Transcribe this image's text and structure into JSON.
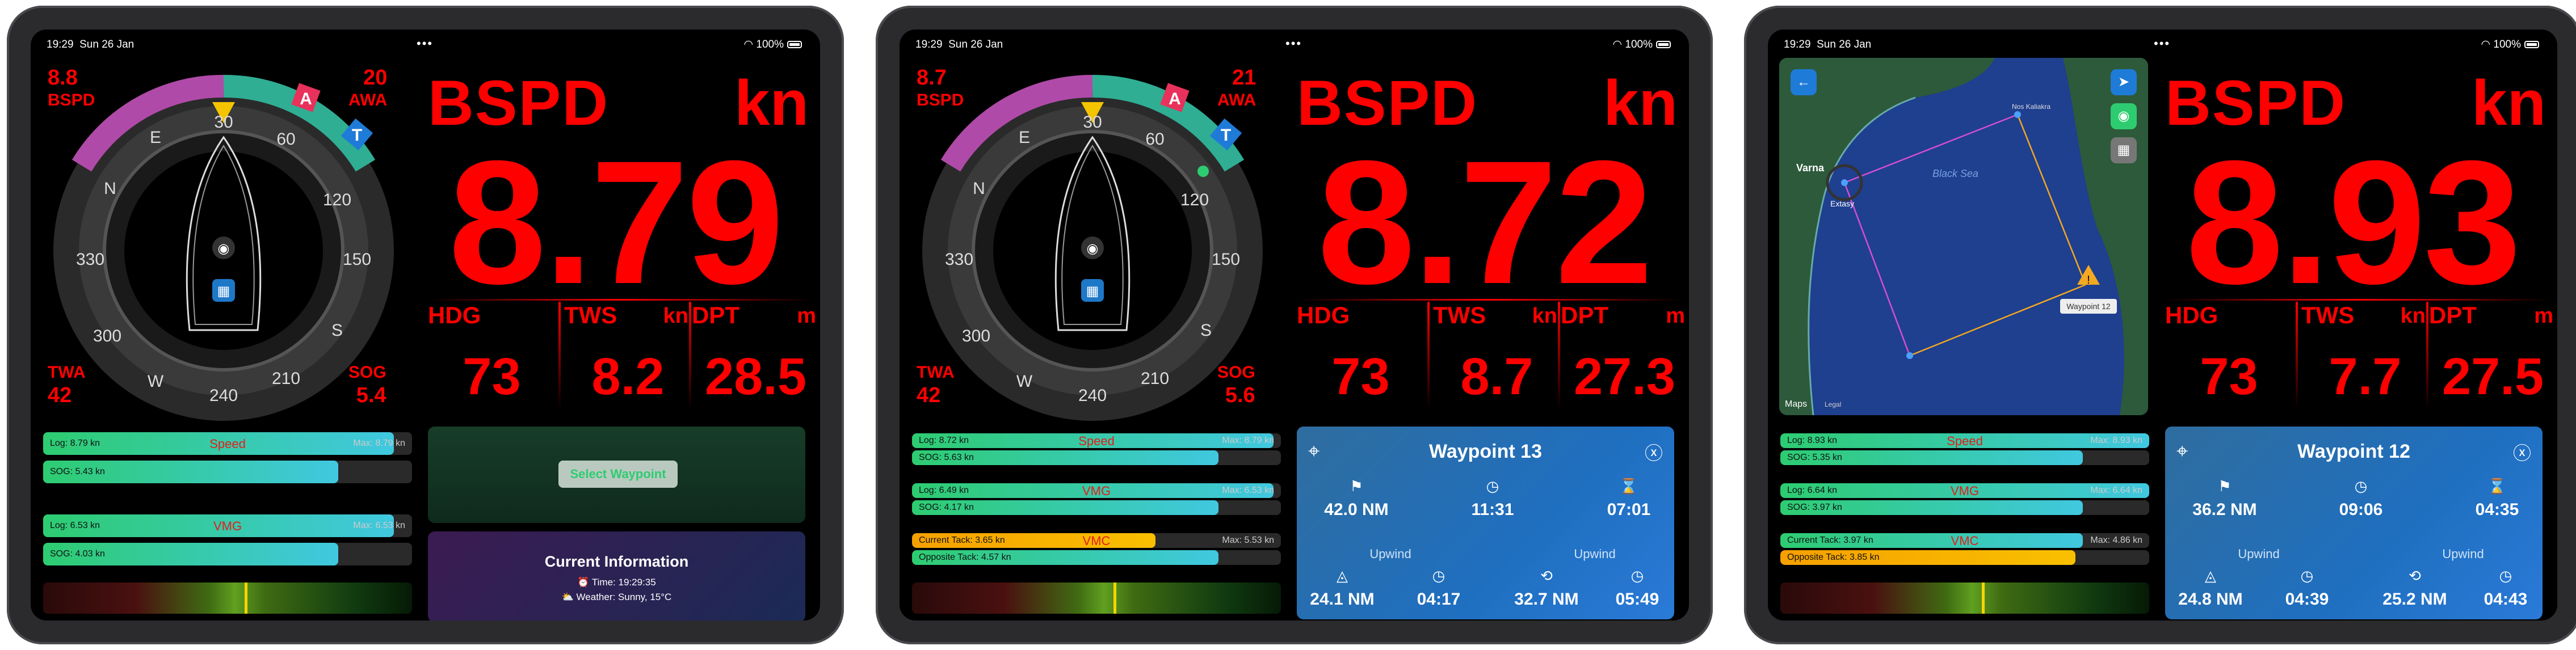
{
  "status": {
    "time": "19:29",
    "date": "Sun 26 Jan",
    "dots": "•••",
    "battery": "100%"
  },
  "colors": {
    "accent": "#ff0000",
    "bar_fill": "#2ecc71",
    "panel_blue": "#1f6fc0"
  },
  "compass": {
    "ticks": [
      "30",
      "60",
      "E",
      "120",
      "150",
      "S",
      "210",
      "240",
      "W",
      "300",
      "330",
      "N"
    ],
    "flags": [
      "A",
      "T"
    ]
  },
  "screens": [
    {
      "bspd": "8.8",
      "awa": "20",
      "twa": "42",
      "sog": "5.4",
      "corner_labels": {
        "bspd": "BSPD",
        "awa": "AWA",
        "twa": "TWA",
        "sog": "SOG"
      },
      "big_title": "BSPD",
      "big_unit": "kn",
      "big_value": "8.79",
      "metrics": [
        {
          "label": "HDG",
          "unit": "",
          "value": "73"
        },
        {
          "label": "TWS",
          "unit": "kn",
          "value": "8.2"
        },
        {
          "label": "DPT",
          "unit": "m",
          "value": "28.5"
        }
      ],
      "bars": [
        {
          "left": "Log: 8.79 kn",
          "center": "Speed",
          "right": "Max: 8.79 kn",
          "fill": 0.95
        },
        {
          "left": "SOG: 5.43 kn",
          "center": "",
          "right": "",
          "fill": 0.8
        },
        {
          "left": "Log: 6.53 kn",
          "center": "VMG",
          "right": "Max: 6.53 kn",
          "fill": 0.95
        },
        {
          "left": "SOG: 4.03 kn",
          "center": "",
          "right": "",
          "fill": 0.8
        }
      ],
      "select_waypoint": "Select Waypoint",
      "current_info": {
        "title": "Current Information",
        "time": "⏰ Time: 19:29:35",
        "weather": "⛅ Weather: Sunny, 15°C"
      }
    },
    {
      "bspd": "8.7",
      "awa": "21",
      "twa": "42",
      "sog": "5.6",
      "corner_labels": {
        "bspd": "BSPD",
        "awa": "AWA",
        "twa": "TWA",
        "sog": "SOG"
      },
      "big_title": "BSPD",
      "big_unit": "kn",
      "big_value": "8.72",
      "metrics": [
        {
          "label": "HDG",
          "unit": "",
          "value": "73"
        },
        {
          "label": "TWS",
          "unit": "kn",
          "value": "8.7"
        },
        {
          "label": "DPT",
          "unit": "m",
          "value": "27.3"
        }
      ],
      "bars": [
        {
          "left": "Log: 8.72 kn",
          "center": "Speed",
          "right": "Max: 8.79 kn",
          "fill": 0.98
        },
        {
          "left": "SOG: 5.63 kn",
          "center": "",
          "right": "",
          "fill": 0.83
        },
        {
          "left": "Log: 6.49 kn",
          "center": "VMG",
          "right": "Max: 6.53 kn",
          "fill": 0.98
        },
        {
          "left": "SOG: 4.17 kn",
          "center": "",
          "right": "",
          "fill": 0.83
        },
        {
          "left": "Current Tack: 3.65 kn",
          "center": "VMC",
          "right": "Max: 5.53 kn",
          "fill": 0.66,
          "orange": true
        },
        {
          "left": "Opposite Tack: 4.57 kn",
          "center": "",
          "right": "",
          "fill": 0.83
        }
      ],
      "waypoint": {
        "title": "Waypoint 13",
        "dist": "42.0 NM",
        "eta": "11:31",
        "ttg": "07:01",
        "upwind1": "Upwind",
        "upwind2": "Upwind",
        "u_dist": "24.1 NM",
        "u_time": "04:17",
        "u_dist2": "32.7 NM",
        "u_time2": "05:49"
      }
    },
    {
      "bspd": "",
      "awa": "",
      "twa": "",
      "sog": "",
      "big_title": "BSPD",
      "big_unit": "kn",
      "big_value": "8.93",
      "metrics": [
        {
          "label": "HDG",
          "unit": "",
          "value": "73"
        },
        {
          "label": "TWS",
          "unit": "kn",
          "value": "7.7"
        },
        {
          "label": "DPT",
          "unit": "m",
          "value": "27.5"
        }
      ],
      "bars": [
        {
          "left": "Log: 8.93 kn",
          "center": "Speed",
          "right": "Max: 8.93 kn",
          "fill": 1.0
        },
        {
          "left": "SOG: 5.35 kn",
          "center": "",
          "right": "",
          "fill": 0.82
        },
        {
          "left": "Log: 6.64 kn",
          "center": "VMG",
          "right": "Max: 6.64 kn",
          "fill": 1.0
        },
        {
          "left": "SOG: 3.97 kn",
          "center": "",
          "right": "",
          "fill": 0.82
        },
        {
          "left": "Current Tack: 3.97 kn",
          "center": "VMC",
          "right": "Max: 4.86 kn",
          "fill": 0.82
        },
        {
          "left": "Opposite Tack: 3.85 kn",
          "center": "",
          "right": "",
          "fill": 0.8,
          "orange": true
        }
      ],
      "map": {
        "city": "Varna",
        "boat": "Extasy",
        "sea": "Black Sea",
        "town": "Nos Kaliakra",
        "waypoint_label": "Waypoint 12",
        "legal": "Legal",
        "maps": "Maps"
      },
      "waypoint": {
        "title": "Waypoint 12",
        "dist": "36.2 NM",
        "eta": "09:06",
        "ttg": "04:35",
        "upwind1": "Upwind",
        "upwind2": "Upwind",
        "u_dist": "24.8 NM",
        "u_time": "04:39",
        "u_dist2": "25.2 NM",
        "u_time2": "04:43"
      }
    }
  ]
}
